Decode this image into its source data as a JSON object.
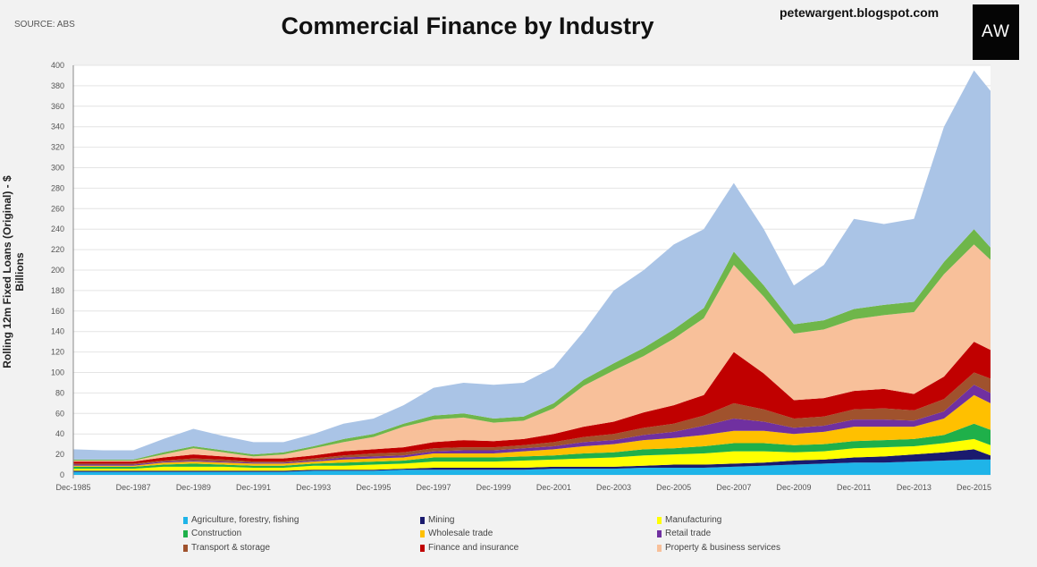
{
  "source": "SOURCE: ABS",
  "blog": "petewargent.blogspot.com",
  "logo_text": "AW",
  "chart_data": {
    "type": "area",
    "stacked": true,
    "title": "Commercial Finance by Industry",
    "ylabel": "Rolling 12m Fixed Loans (Original) - $ Billions",
    "xlabel": "",
    "ylim": [
      0,
      400
    ],
    "yticks": [
      0,
      20,
      40,
      60,
      80,
      100,
      120,
      140,
      160,
      180,
      200,
      220,
      240,
      260,
      280,
      300,
      320,
      340,
      360,
      380,
      400
    ],
    "xtick_labels": [
      "Dec-1985",
      "Dec-1987",
      "Dec-1989",
      "Dec-1991",
      "Dec-1993",
      "Dec-1995",
      "Dec-1997",
      "Dec-1999",
      "Dec-2001",
      "Dec-2003",
      "Dec-2005",
      "Dec-2007",
      "Dec-2009",
      "Dec-2011",
      "Dec-2013",
      "Dec-2015"
    ],
    "grid": "horizontal",
    "legend_position": "bottom",
    "x": [
      "Dec-1985",
      "Dec-1986",
      "Dec-1987",
      "Dec-1988",
      "Dec-1989",
      "Dec-1990",
      "Dec-1991",
      "Dec-1992",
      "Dec-1993",
      "Dec-1994",
      "Dec-1995",
      "Dec-1996",
      "Dec-1997",
      "Dec-1998",
      "Dec-1999",
      "Dec-2000",
      "Dec-2001",
      "Dec-2002",
      "Dec-2003",
      "Dec-2004",
      "Dec-2005",
      "Dec-2006",
      "Dec-2007",
      "Dec-2008",
      "Dec-2009",
      "Dec-2010",
      "Dec-2011",
      "Dec-2012",
      "Dec-2013",
      "Dec-2014",
      "Dec-2015",
      "Jun-2016"
    ],
    "series": [
      {
        "name": "Agriculture, forestry, fishing",
        "color": "#1fb4e8",
        "values": [
          3,
          3,
          3,
          3,
          3,
          3,
          3,
          3,
          4,
          4,
          4,
          5,
          5,
          5,
          5,
          5,
          6,
          6,
          6,
          7,
          7,
          7,
          8,
          9,
          10,
          11,
          12,
          12,
          13,
          14,
          15,
          15
        ]
      },
      {
        "name": "Mining",
        "color": "#1a1a6e",
        "values": [
          1,
          1,
          1,
          1,
          1,
          1,
          1,
          1,
          1,
          1,
          1,
          1,
          2,
          2,
          2,
          2,
          2,
          2,
          2,
          2,
          3,
          3,
          3,
          3,
          4,
          4,
          5,
          6,
          7,
          8,
          10,
          4
        ]
      },
      {
        "name": "Manufacturing",
        "color": "#ffff00",
        "values": [
          2,
          2,
          2,
          4,
          4,
          4,
          3,
          3,
          4,
          4,
          5,
          5,
          6,
          6,
          6,
          7,
          7,
          8,
          9,
          10,
          10,
          11,
          12,
          11,
          8,
          8,
          9,
          9,
          8,
          9,
          10,
          10
        ]
      },
      {
        "name": "Construction",
        "color": "#1fb04a",
        "values": [
          2,
          2,
          2,
          2,
          3,
          2,
          2,
          2,
          2,
          3,
          3,
          3,
          4,
          4,
          4,
          4,
          4,
          5,
          5,
          6,
          6,
          7,
          8,
          8,
          7,
          7,
          7,
          7,
          7,
          8,
          15,
          15
        ]
      },
      {
        "name": "Wholesale trade",
        "color": "#ffc000",
        "values": [
          1,
          1,
          1,
          2,
          2,
          2,
          2,
          2,
          2,
          3,
          3,
          3,
          4,
          4,
          4,
          5,
          6,
          7,
          8,
          9,
          10,
          11,
          12,
          12,
          11,
          12,
          14,
          13,
          12,
          16,
          28,
          26
        ]
      },
      {
        "name": "Retail trade",
        "color": "#7030a0",
        "values": [
          1,
          1,
          1,
          1,
          1,
          1,
          1,
          1,
          1,
          2,
          2,
          2,
          2,
          3,
          3,
          3,
          3,
          4,
          4,
          5,
          6,
          9,
          12,
          9,
          6,
          6,
          7,
          7,
          6,
          7,
          10,
          10
        ]
      },
      {
        "name": "Transport & storage",
        "color": "#a0522d",
        "values": [
          1,
          1,
          1,
          1,
          2,
          2,
          1,
          1,
          2,
          2,
          3,
          3,
          3,
          3,
          3,
          3,
          4,
          5,
          6,
          7,
          8,
          10,
          15,
          12,
          9,
          9,
          10,
          11,
          10,
          12,
          12,
          14
        ]
      },
      {
        "name": "Finance and insurance",
        "color": "#c00000",
        "values": [
          2,
          2,
          2,
          3,
          4,
          3,
          3,
          3,
          3,
          4,
          4,
          5,
          6,
          7,
          6,
          6,
          8,
          10,
          12,
          15,
          18,
          20,
          50,
          35,
          18,
          18,
          18,
          19,
          16,
          22,
          30,
          28
        ]
      },
      {
        "name": "Property & business services",
        "color": "#f8c09a",
        "values": [
          1,
          1,
          1,
          3,
          6,
          4,
          2,
          4,
          7,
          9,
          12,
          20,
          22,
          22,
          18,
          18,
          25,
          40,
          50,
          55,
          65,
          75,
          85,
          75,
          65,
          67,
          70,
          72,
          80,
          100,
          95,
          88
        ]
      },
      {
        "color": "#6fb64a",
        "values": [
          1,
          1,
          1,
          2,
          2,
          2,
          2,
          2,
          2,
          3,
          3,
          3,
          4,
          4,
          4,
          4,
          5,
          6,
          7,
          8,
          9,
          10,
          13,
          11,
          9,
          9,
          10,
          10,
          10,
          12,
          15,
          12
        ]
      },
      {
        "color": "#aac4e6",
        "values": [
          10,
          9,
          9,
          13,
          17,
          14,
          12,
          10,
          12,
          15,
          15,
          18,
          27,
          30,
          33,
          33,
          35,
          47,
          71,
          76,
          83,
          77,
          67,
          55,
          38,
          54,
          88,
          79,
          81,
          132,
          155,
          153
        ]
      }
    ]
  }
}
